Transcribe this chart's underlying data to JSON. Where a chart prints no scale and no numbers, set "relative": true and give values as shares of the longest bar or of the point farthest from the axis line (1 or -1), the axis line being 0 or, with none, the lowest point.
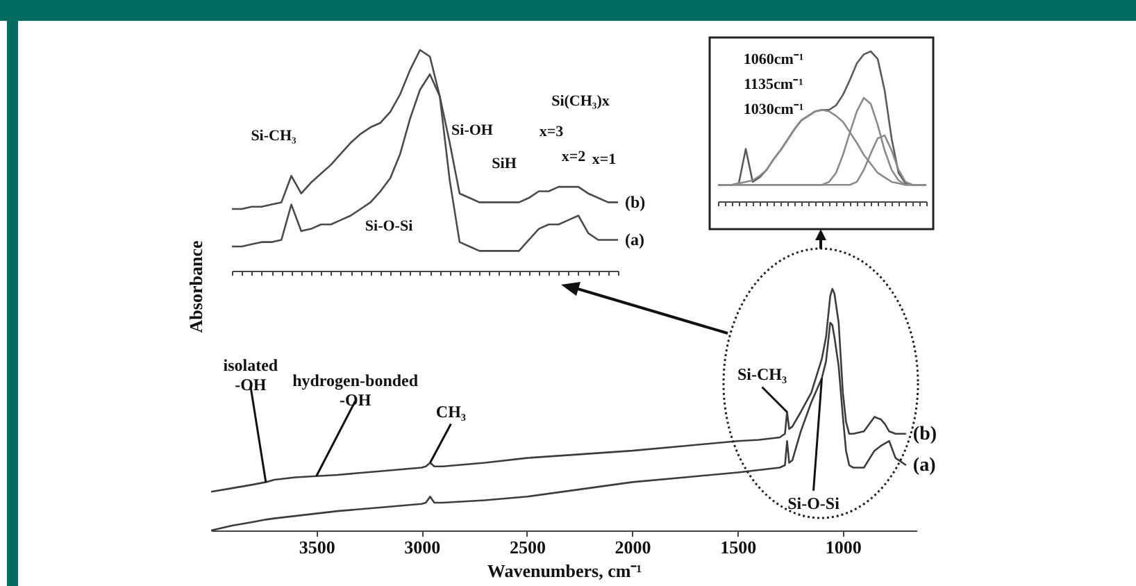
{
  "chart_data": [
    {
      "type": "line",
      "xlabel": "Wavenumbers, cm⁻¹",
      "ylabel": "Absorbance",
      "relative": true,
      "tick_labels": "x",
      "xlim": [
        4000,
        650
      ],
      "xticks": [
        3500,
        3000,
        2500,
        2000,
        1500,
        1000
      ],
      "x": [
        4000,
        3900,
        3800,
        3740,
        3700,
        3600,
        3500,
        3400,
        3200,
        3000,
        2980,
        2960,
        2940,
        2900,
        2700,
        2500,
        2250,
        2000,
        1750,
        1500,
        1400,
        1300,
        1275,
        1265,
        1255,
        1240,
        1200,
        1150,
        1100,
        1080,
        1060,
        1050,
        1040,
        1020,
        1000,
        985,
        970,
        950,
        900,
        850,
        820,
        800,
        780,
        750,
        700
      ],
      "series": [
        {
          "name": "(b)",
          "color": "#3c3c3c",
          "values": [
            0.16,
            0.175,
            0.19,
            0.2,
            0.21,
            0.22,
            0.225,
            0.23,
            0.245,
            0.26,
            0.265,
            0.28,
            0.265,
            0.265,
            0.28,
            0.3,
            0.315,
            0.33,
            0.35,
            0.37,
            0.375,
            0.385,
            0.4,
            0.49,
            0.42,
            0.43,
            0.49,
            0.57,
            0.71,
            0.8,
            0.97,
            1,
            0.98,
            0.86,
            0.57,
            0.45,
            0.4,
            0.4,
            0.41,
            0.47,
            0.46,
            0.44,
            0.41,
            0.4,
            0.4
          ]
        },
        {
          "name": "(a)",
          "color": "#3c3c3c",
          "values": [
            0,
            0.02,
            0.035,
            0.045,
            0.05,
            0.06,
            0.07,
            0.08,
            0.095,
            0.11,
            0.115,
            0.14,
            0.115,
            0.115,
            0.125,
            0.14,
            0.17,
            0.2,
            0.22,
            0.24,
            0.25,
            0.26,
            0.27,
            0.37,
            0.28,
            0.29,
            0.41,
            0.53,
            0.63,
            0.7,
            0.86,
            0.85,
            0.8,
            0.68,
            0.47,
            0.33,
            0.27,
            0.26,
            0.26,
            0.33,
            0.35,
            0.36,
            0.37,
            0.3,
            0.27
          ]
        }
      ],
      "annotations": [
        {
          "text": "isolated -OH",
          "x": 3740,
          "y": 0.2
        },
        {
          "text": "hydrogen-bonded -OH",
          "x": 3500,
          "y": 0.225
        },
        {
          "text": "CH₃",
          "x": 2960,
          "y": 0.28
        },
        {
          "text": "Si-CH₃",
          "x": 1265,
          "y": 0.49
        },
        {
          "text": "Si-O-Si",
          "x": 1100,
          "y": 0.63
        }
      ]
    },
    {
      "type": "line",
      "relative": true,
      "tick_labels": false,
      "categories": [
        null,
        null,
        null,
        null,
        null,
        null,
        null,
        null,
        null,
        null,
        null,
        null,
        null,
        null,
        null,
        null,
        null,
        null,
        null,
        null,
        null,
        null,
        null,
        null,
        null,
        null,
        null,
        null,
        null,
        null,
        null,
        null,
        null,
        null,
        null,
        null,
        null,
        null,
        null,
        null
      ],
      "series": [
        {
          "name": "(b)",
          "color": "#4a4a4a",
          "values": [
            0.28,
            0.28,
            0.29,
            0.29,
            0.3,
            0.31,
            0.43,
            0.35,
            0.4,
            0.44,
            0.48,
            0.53,
            0.58,
            0.62,
            0.65,
            0.67,
            0.72,
            0.8,
            0.91,
            1,
            0.97,
            0.79,
            0.58,
            0.35,
            0.33,
            0.31,
            0.31,
            0.31,
            0.31,
            0.31,
            0.33,
            0.36,
            0.36,
            0.38,
            0.38,
            0.38,
            0.35,
            0.33,
            0.31,
            0.31
          ]
        },
        {
          "name": "(a)",
          "color": "#4a4a4a",
          "values": [
            0.11,
            0.11,
            0.12,
            0.13,
            0.13,
            0.14,
            0.3,
            0.18,
            0.19,
            0.21,
            0.21,
            0.23,
            0.25,
            0.28,
            0.31,
            0.36,
            0.42,
            0.53,
            0.69,
            0.82,
            0.89,
            0.79,
            0.41,
            0.13,
            0.11,
            0.09,
            0.09,
            0.09,
            0.09,
            0.09,
            0.14,
            0.19,
            0.21,
            0.21,
            0.23,
            0.25,
            0.17,
            0.14,
            0.14,
            0.14
          ]
        }
      ],
      "annotations": [
        "Si-CH₃",
        "Si-O-Si",
        "Si-OH",
        "SiH",
        "Si(CH₃)x",
        "x=3",
        "x=2",
        "x=1"
      ]
    },
    {
      "type": "line",
      "relative": true,
      "tick_labels": false,
      "categories": [
        null,
        null,
        null,
        null,
        null,
        null,
        null,
        null,
        null,
        null,
        null,
        null,
        null,
        null,
        null,
        null,
        null,
        null,
        null,
        null,
        null,
        null,
        null,
        null,
        null,
        null,
        null,
        null,
        null,
        null,
        null
      ],
      "series": [
        {
          "color": "#5a5a5a",
          "values": [
            0.11,
            0.11,
            0.11,
            0.12,
            0.35,
            0.13,
            0.16,
            0.21,
            0.28,
            0.34,
            0.41,
            0.48,
            0.54,
            0.57,
            0.6,
            0.61,
            0.61,
            0.64,
            0.71,
            0.81,
            0.92,
            0.98,
            1,
            0.95,
            0.74,
            0.42,
            0.19,
            0.12,
            0.11,
            0.11,
            0.11
          ]
        },
        {
          "color": "#8a8a8a",
          "values": [
            0.11,
            0.11,
            0.11,
            0.12,
            0.13,
            0.14,
            0.17,
            0.21,
            0.28,
            0.34,
            0.41,
            0.48,
            0.54,
            0.57,
            0.6,
            0.61,
            0.6,
            0.57,
            0.53,
            0.46,
            0.39,
            0.31,
            0.25,
            0.19,
            0.16,
            0.13,
            0.12,
            0.11,
            0.11,
            0.11,
            0.11
          ]
        },
        {
          "color": "#8a8a8a",
          "values": [
            0.11,
            0.11,
            0.11,
            0.11,
            0.11,
            0.11,
            0.11,
            0.11,
            0.11,
            0.11,
            0.11,
            0.11,
            0.11,
            0.11,
            0.11,
            0.11,
            0.13,
            0.19,
            0.31,
            0.46,
            0.6,
            0.69,
            0.65,
            0.51,
            0.34,
            0.21,
            0.14,
            0.11,
            0.11,
            0.11,
            0.11
          ]
        },
        {
          "color": "#8a8a8a",
          "values": [
            0.11,
            0.11,
            0.11,
            0.11,
            0.11,
            0.11,
            0.11,
            0.11,
            0.11,
            0.11,
            0.11,
            0.11,
            0.11,
            0.11,
            0.11,
            0.11,
            0.11,
            0.11,
            0.11,
            0.11,
            0.13,
            0.21,
            0.32,
            0.42,
            0.44,
            0.34,
            0.21,
            0.13,
            0.11,
            0.11,
            0.11
          ]
        }
      ],
      "annotations": [
        "1135cm⁻¹",
        "1060cm⁻¹",
        "1030cm⁻¹"
      ]
    }
  ]
}
